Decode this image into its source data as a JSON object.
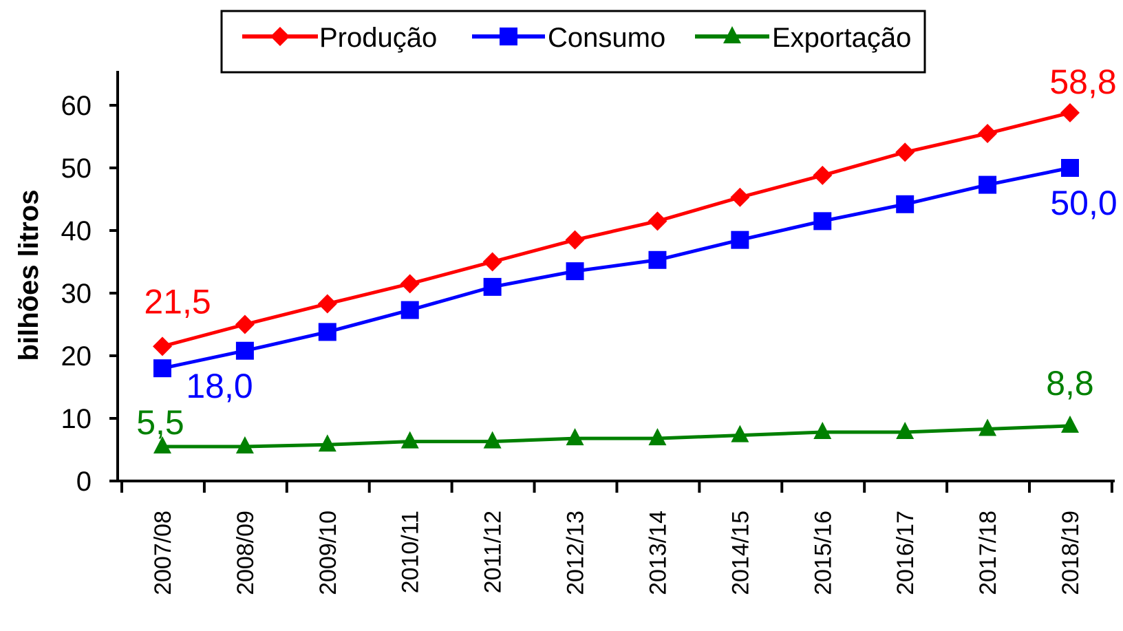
{
  "chart_data": {
    "type": "line",
    "title": "",
    "xlabel": "",
    "ylabel": "bilhões litros",
    "ylim": [
      0,
      60
    ],
    "yticks": [
      0,
      10,
      20,
      30,
      40,
      50,
      60
    ],
    "ytick_labels": [
      "0",
      "10",
      "20",
      "30",
      "40",
      "50",
      "60"
    ],
    "grid": false,
    "legend_position": "top",
    "categories": [
      "2007/08",
      "2008/09",
      "2009/10",
      "2010/11",
      "2011/12",
      "2012/13",
      "2013/14",
      "2014/15",
      "2015/16",
      "2016/17",
      "2017/18",
      "2018/19"
    ],
    "series": [
      {
        "name": "Produção",
        "color": "#ff0000",
        "marker": "diamond",
        "values": [
          21.5,
          25.0,
          28.3,
          31.5,
          35.0,
          38.5,
          41.5,
          45.3,
          48.8,
          52.5,
          55.5,
          58.8
        ],
        "annotations": [
          {
            "index": 0,
            "text": "21,5"
          },
          {
            "index": 11,
            "text": "58,8"
          }
        ]
      },
      {
        "name": "Consumo",
        "color": "#0000ff",
        "marker": "square",
        "values": [
          18.0,
          20.8,
          23.8,
          27.3,
          31.0,
          33.5,
          35.3,
          38.5,
          41.5,
          44.2,
          47.3,
          50.0
        ],
        "annotations": [
          {
            "index": 0,
            "text": "18,0"
          },
          {
            "index": 11,
            "text": "50,0"
          }
        ]
      },
      {
        "name": "Exportação",
        "color": "#008000",
        "marker": "triangle",
        "values": [
          5.5,
          5.5,
          5.8,
          6.3,
          6.3,
          6.8,
          6.8,
          7.3,
          7.8,
          7.8,
          8.3,
          8.8
        ],
        "annotations": [
          {
            "index": 0,
            "text": "5,5"
          },
          {
            "index": 11,
            "text": "8,8"
          }
        ]
      }
    ]
  }
}
